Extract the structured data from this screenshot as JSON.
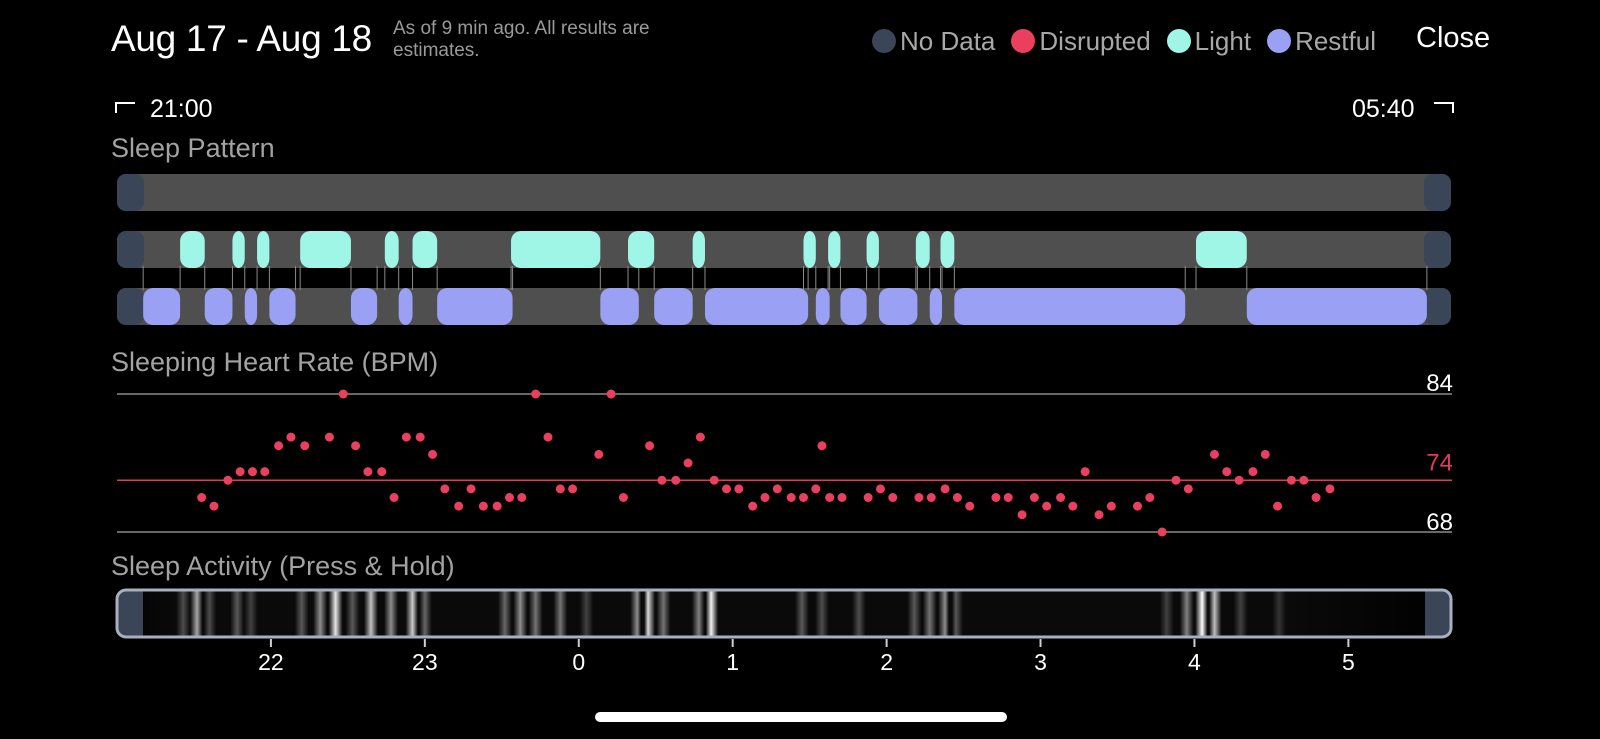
{
  "header": {
    "title": "Aug 17 - Aug 18",
    "subtitle": "As of 9 min ago. All results are estimates.",
    "close_label": "Close"
  },
  "legend": [
    {
      "label": "No Data",
      "color": "#3a4558"
    },
    {
      "label": "Disrupted",
      "color": "#ea3f5f"
    },
    {
      "label": "Light",
      "color": "#9ff6e6"
    },
    {
      "label": "Restful",
      "color": "#9aa0f4"
    }
  ],
  "time_range": {
    "start": "21:00",
    "end": "05:40"
  },
  "sections": {
    "sleep_pattern": "Sleep Pattern",
    "heart_rate": "Sleeping Heart Rate (BPM)",
    "activity": "Sleep Activity (Press & Hold)"
  },
  "colors": {
    "track": "#4f4f4f",
    "nodata": "#3a4558",
    "light": "#9ff6e6",
    "restful": "#9aa0f4",
    "disrupted": "#ea3f5f",
    "hr_line": "#8a8a8a",
    "avg_line": "#e23a59",
    "activity_border": "#a8b0c0"
  },
  "sleep_pattern": {
    "axis_range_hours": [
      21.0,
      29.6667
    ],
    "nodata_edges": true,
    "light_segments": [
      [
        21.41,
        21.57
      ],
      [
        21.75,
        21.83
      ],
      [
        21.91,
        21.99
      ],
      [
        22.19,
        22.52
      ],
      [
        22.74,
        22.83
      ],
      [
        22.92,
        23.08
      ],
      [
        23.56,
        24.14
      ],
      [
        24.32,
        24.49
      ],
      [
        24.74,
        24.82
      ],
      [
        25.46,
        25.54
      ],
      [
        25.62,
        25.7
      ],
      [
        25.87,
        25.95
      ],
      [
        26.19,
        26.28
      ],
      [
        26.35,
        26.44
      ],
      [
        28.01,
        28.34
      ]
    ],
    "restful_segments": [
      [
        21.17,
        21.41
      ],
      [
        21.57,
        21.75
      ],
      [
        21.83,
        21.91
      ],
      [
        21.99,
        22.16
      ],
      [
        22.52,
        22.69
      ],
      [
        22.83,
        22.92
      ],
      [
        23.08,
        23.57
      ],
      [
        24.14,
        24.39
      ],
      [
        24.49,
        24.74
      ],
      [
        24.82,
        25.49
      ],
      [
        25.54,
        25.63
      ],
      [
        25.7,
        25.87
      ],
      [
        25.95,
        26.2
      ],
      [
        26.28,
        26.36
      ],
      [
        26.44,
        27.94
      ],
      [
        28.34,
        29.51
      ]
    ]
  },
  "heart_rate": {
    "labels": {
      "max": "84",
      "avg": "74",
      "min": "68"
    },
    "scale": [
      68,
      84
    ],
    "x_range": [
      21.0,
      29.6667
    ],
    "points": [
      [
        21.55,
        72
      ],
      [
        21.63,
        71
      ],
      [
        21.72,
        74
      ],
      [
        21.8,
        75
      ],
      [
        21.88,
        75
      ],
      [
        21.96,
        75
      ],
      [
        22.05,
        78
      ],
      [
        22.13,
        79
      ],
      [
        22.22,
        78
      ],
      [
        22.38,
        79
      ],
      [
        22.47,
        84
      ],
      [
        22.55,
        78
      ],
      [
        22.63,
        75
      ],
      [
        22.72,
        75
      ],
      [
        22.8,
        72
      ],
      [
        22.88,
        79
      ],
      [
        22.97,
        79
      ],
      [
        23.05,
        77
      ],
      [
        23.13,
        73
      ],
      [
        23.22,
        71
      ],
      [
        23.3,
        73
      ],
      [
        23.38,
        71
      ],
      [
        23.47,
        71
      ],
      [
        23.55,
        72
      ],
      [
        23.63,
        72
      ],
      [
        23.72,
        84
      ],
      [
        23.8,
        79
      ],
      [
        23.88,
        73
      ],
      [
        23.96,
        73
      ],
      [
        24.13,
        77
      ],
      [
        24.21,
        84
      ],
      [
        24.29,
        72
      ],
      [
        24.46,
        78
      ],
      [
        24.54,
        74
      ],
      [
        24.63,
        74
      ],
      [
        24.71,
        76
      ],
      [
        24.79,
        79
      ],
      [
        24.88,
        74
      ],
      [
        24.96,
        73
      ],
      [
        25.04,
        73
      ],
      [
        25.13,
        71
      ],
      [
        25.21,
        72
      ],
      [
        25.29,
        73
      ],
      [
        25.38,
        72
      ],
      [
        25.46,
        72
      ],
      [
        25.54,
        73
      ],
      [
        25.58,
        78
      ],
      [
        25.63,
        72
      ],
      [
        25.71,
        72
      ],
      [
        25.88,
        72
      ],
      [
        25.96,
        73
      ],
      [
        26.04,
        72
      ],
      [
        26.21,
        72
      ],
      [
        26.29,
        72
      ],
      [
        26.38,
        73
      ],
      [
        26.46,
        72
      ],
      [
        26.54,
        71
      ],
      [
        26.71,
        72
      ],
      [
        26.79,
        72
      ],
      [
        26.88,
        70
      ],
      [
        26.96,
        72
      ],
      [
        27.04,
        71
      ],
      [
        27.13,
        72
      ],
      [
        27.21,
        71
      ],
      [
        27.29,
        75
      ],
      [
        27.38,
        70
      ],
      [
        27.46,
        71
      ],
      [
        27.63,
        71
      ],
      [
        27.71,
        72
      ],
      [
        27.79,
        68
      ],
      [
        27.88,
        74
      ],
      [
        27.96,
        73
      ],
      [
        28.13,
        77
      ],
      [
        28.21,
        75
      ],
      [
        28.29,
        74
      ],
      [
        28.38,
        75
      ],
      [
        28.46,
        77
      ],
      [
        28.54,
        71
      ],
      [
        28.63,
        74
      ],
      [
        28.71,
        74
      ],
      [
        28.79,
        72
      ],
      [
        28.88,
        73
      ]
    ]
  },
  "activity": {
    "bands": [
      [
        21.43,
        0.3
      ],
      [
        21.52,
        0.65
      ],
      [
        21.6,
        0.3
      ],
      [
        21.78,
        0.35
      ],
      [
        21.87,
        0.25
      ],
      [
        22.2,
        0.35
      ],
      [
        22.32,
        0.55
      ],
      [
        22.42,
        0.9
      ],
      [
        22.53,
        0.35
      ],
      [
        22.65,
        0.75
      ],
      [
        22.78,
        0.55
      ],
      [
        22.92,
        0.8
      ],
      [
        23.0,
        0.4
      ],
      [
        23.52,
        0.4
      ],
      [
        23.62,
        0.55
      ],
      [
        23.72,
        0.45
      ],
      [
        23.88,
        0.45
      ],
      [
        24.05,
        0.25
      ],
      [
        24.38,
        0.55
      ],
      [
        24.45,
        0.85
      ],
      [
        24.55,
        0.45
      ],
      [
        24.78,
        0.5
      ],
      [
        24.86,
        0.95
      ],
      [
        25.45,
        0.35
      ],
      [
        25.58,
        0.3
      ],
      [
        25.82,
        0.3
      ],
      [
        26.18,
        0.35
      ],
      [
        26.28,
        0.45
      ],
      [
        26.38,
        0.55
      ],
      [
        26.45,
        0.35
      ],
      [
        27.82,
        0.25
      ],
      [
        27.95,
        0.5
      ],
      [
        28.05,
        1.0
      ],
      [
        28.13,
        0.75
      ],
      [
        28.3,
        0.25
      ],
      [
        28.55,
        0.2
      ]
    ],
    "ticks": [
      "22",
      "23",
      "0",
      "1",
      "2",
      "3",
      "4",
      "5"
    ]
  }
}
